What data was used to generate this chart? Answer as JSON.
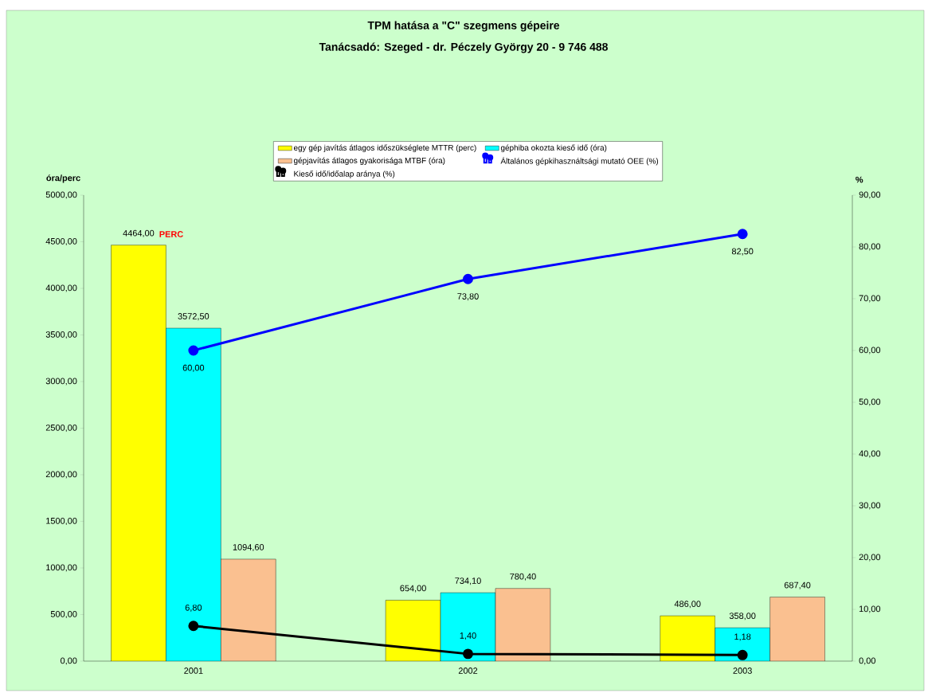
{
  "chart_data": {
    "type": "bar",
    "title": "TPM hatása a \"C\" szegmens gépeire",
    "subtitle": "Tanácsadó: Szeged - dr. Péczely György 20 - 9 746 488",
    "ylabel": "óra/perc",
    "y2label": "%",
    "categories": [
      "2001",
      "2002",
      "2003"
    ],
    "series": [
      {
        "name": "egy gép javítás átlagos időszükséglete MTTR (perc)",
        "color": "#ffff00",
        "values": [
          4464.0,
          654.0,
          486.0
        ],
        "value_labels": [
          "4464,00",
          "654,00",
          "486,00"
        ]
      },
      {
        "name": "géphiba okozta kieső idő (óra)",
        "color": "#00ffff",
        "values": [
          3572.5,
          734.1,
          358.0
        ],
        "value_labels": [
          "3572,50",
          "734,10",
          "358,00"
        ]
      },
      {
        "name": "gépjavítás átlagos gyakorisága MTBF (óra)",
        "color": "#fac090",
        "values": [
          1094.6,
          780.4,
          687.4
        ],
        "value_labels": [
          "1094,60",
          "780,40",
          "687,40"
        ]
      },
      {
        "name": "Általános gépkihasználtsági mutató OEE (%)",
        "type": "line",
        "axis": "y2",
        "color": "#0000ff",
        "values": [
          60.0,
          73.8,
          82.5
        ],
        "value_labels": [
          "60,00",
          "73,80",
          "82,50"
        ]
      },
      {
        "name": "Kieső idő/időalap aránya (%)",
        "type": "line",
        "axis": "y2",
        "color": "#000000",
        "values": [
          6.8,
          1.4,
          1.18
        ],
        "value_labels": [
          "6,80",
          "1,40",
          "1,18"
        ]
      }
    ],
    "ylim": [
      0,
      5000
    ],
    "yticks": [
      {
        "value": 0,
        "label": "0,00"
      },
      {
        "value": 500,
        "label": "500,00"
      },
      {
        "value": 1000,
        "label": "1000,00"
      },
      {
        "value": 1500,
        "label": "1500,00"
      },
      {
        "value": 2000,
        "label": "2000,00"
      },
      {
        "value": 2500,
        "label": "2500,00"
      },
      {
        "value": 3000,
        "label": "3000,00"
      },
      {
        "value": 3500,
        "label": "3500,00"
      },
      {
        "value": 4000,
        "label": "4000,00"
      },
      {
        "value": 4500,
        "label": "4500,00"
      },
      {
        "value": 5000,
        "label": "5000,00"
      }
    ],
    "y2lim": [
      0,
      90
    ],
    "y2ticks": [
      {
        "value": 0,
        "label": "0,00"
      },
      {
        "value": 10,
        "label": "10,00"
      },
      {
        "value": 20,
        "label": "20,00"
      },
      {
        "value": 30,
        "label": "30,00"
      },
      {
        "value": 40,
        "label": "40,00"
      },
      {
        "value": 50,
        "label": "50,00"
      },
      {
        "value": 60,
        "label": "60,00"
      },
      {
        "value": 70,
        "label": "70,00"
      },
      {
        "value": 80,
        "label": "80,00"
      },
      {
        "value": 90,
        "label": "90,00"
      }
    ],
    "annotations": [
      "PERC"
    ],
    "legend": "top",
    "marker": "circle",
    "line_style": "solid",
    "grid": false
  }
}
